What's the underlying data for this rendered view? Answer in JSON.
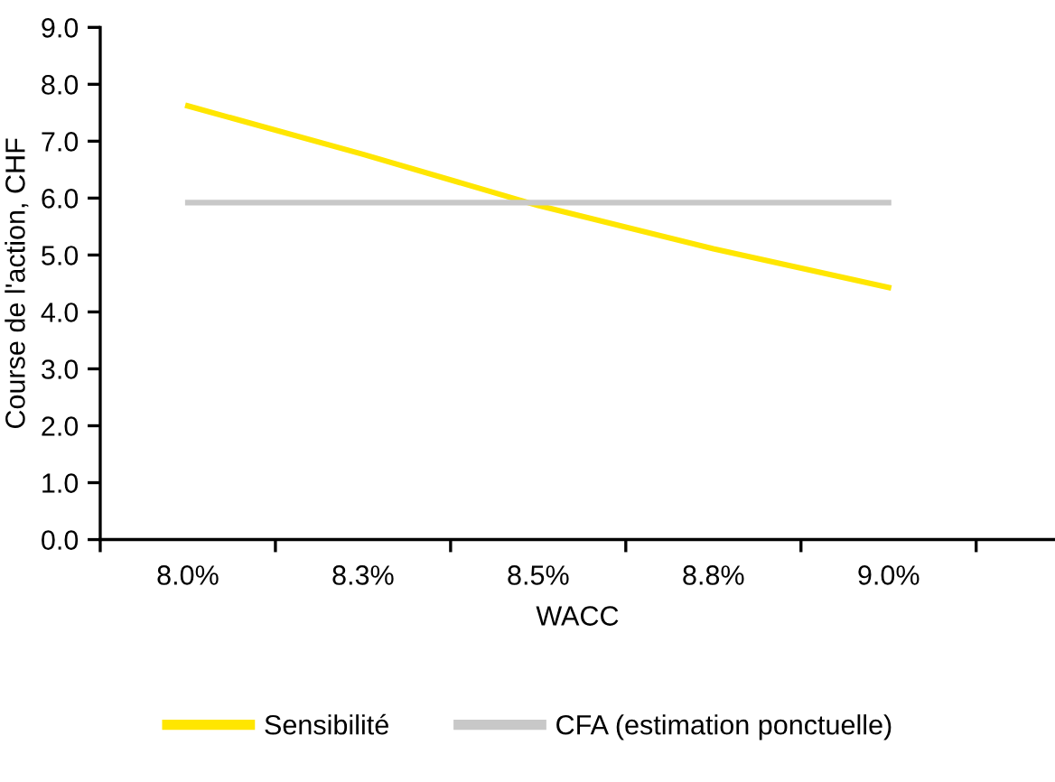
{
  "chart_data": {
    "type": "line",
    "xlabel": "WACC",
    "ylabel": "Course de l'action, CHF",
    "categories": [
      "8.0%",
      "8.3%",
      "8.5%",
      "8.8%",
      "9.0%"
    ],
    "series": [
      {
        "name": "Sensibilité",
        "color": "#ffe600",
        "values": [
          7.62,
          6.77,
          5.87,
          5.11,
          4.43
        ]
      },
      {
        "name": "CFA (estimation ponctuelle)",
        "color": "#c8c8c8",
        "values": [
          5.92,
          5.92,
          5.92,
          5.92,
          5.92
        ]
      }
    ],
    "ylim": [
      0,
      9
    ],
    "yticks": [
      {
        "value": 0,
        "label": "0.0"
      },
      {
        "value": 1,
        "label": "1.0"
      },
      {
        "value": 2,
        "label": "2.0"
      },
      {
        "value": 3,
        "label": "3.0"
      },
      {
        "value": 4,
        "label": "4.0"
      },
      {
        "value": 5,
        "label": "5.0"
      },
      {
        "value": 6,
        "label": "6.0"
      },
      {
        "value": 7,
        "label": "7.0"
      },
      {
        "value": 8,
        "label": "8.0"
      },
      {
        "value": 9,
        "label": "9.0"
      }
    ],
    "grid": false,
    "legend": "bottom",
    "marker": "none",
    "line_style": "solid"
  }
}
